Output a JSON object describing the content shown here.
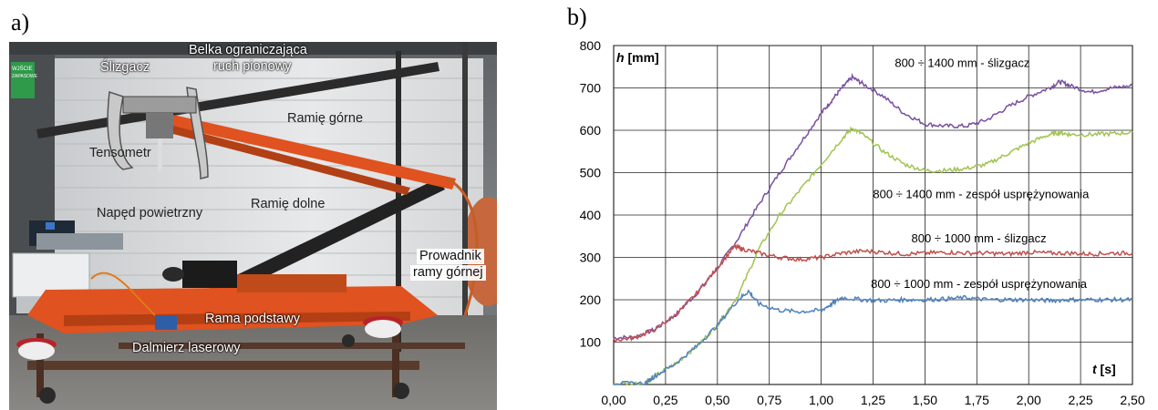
{
  "panel_a": {
    "letter": "a)",
    "labels": {
      "slizgacz": "Ślizgacz",
      "belka_1": "Belka ograniczająca",
      "belka_2": "ruch pionowy",
      "ramie_gorne": "Ramię górne",
      "tensometr": "Tensometr",
      "naped": "Napęd powietrzny",
      "ramie_dolne": "Ramię dolne",
      "prowadnik_1": "Prowadnik",
      "prowadnik_2": "ramy górnej",
      "rama_podstawy": "Rama podstawy",
      "dalmierz": "Dalmierz laserowy"
    },
    "sign_1": "WJŚCIE",
    "sign_2": "ZAPASOWE"
  },
  "panel_b": {
    "letter": "b)"
  },
  "chart_data": {
    "type": "line",
    "ylabel_main": "h",
    "ylabel_unit": " [mm]",
    "xlabel_main": "t",
    "xlabel_unit": " [s]",
    "xlim": [
      0,
      2.5
    ],
    "ylim": [
      0,
      800
    ],
    "x_ticks": [
      "0,00",
      "0,25",
      "0,50",
      "0,75",
      "1,00",
      "1,25",
      "1,50",
      "1,75",
      "2,00",
      "2,25",
      "2,50"
    ],
    "y_ticks": [
      "100",
      "200",
      "300",
      "400",
      "500",
      "600",
      "700",
      "800"
    ],
    "grid": true,
    "series": [
      {
        "name": "800 ÷ 1400 mm - ślizgacz",
        "color": "#7a4fa0",
        "x": [
          0,
          0.1,
          0.2,
          0.3,
          0.4,
          0.5,
          0.6,
          0.7,
          0.8,
          0.9,
          1.0,
          1.05,
          1.1,
          1.15,
          1.2,
          1.3,
          1.4,
          1.5,
          1.6,
          1.7,
          1.8,
          1.9,
          2.0,
          2.1,
          2.15,
          2.2,
          2.3,
          2.4,
          2.5
        ],
        "y": [
          110,
          112,
          130,
          165,
          215,
          275,
          345,
          425,
          500,
          570,
          640,
          670,
          700,
          725,
          710,
          680,
          640,
          615,
          610,
          610,
          625,
          655,
          680,
          700,
          715,
          705,
          690,
          700,
          705
        ]
      },
      {
        "name": "800 ÷ 1400 mm - zespół usprężynowania",
        "color": "#a0c450",
        "x": [
          0,
          0.15,
          0.2,
          0.3,
          0.4,
          0.5,
          0.6,
          0.7,
          0.8,
          0.9,
          1.0,
          1.1,
          1.15,
          1.2,
          1.3,
          1.4,
          1.5,
          1.6,
          1.7,
          1.8,
          1.9,
          2.0,
          2.1,
          2.15,
          2.2,
          2.3,
          2.4,
          2.5
        ],
        "y": [
          2,
          3,
          20,
          50,
          90,
          140,
          210,
          320,
          400,
          460,
          520,
          580,
          605,
          590,
          550,
          520,
          505,
          505,
          510,
          520,
          545,
          570,
          590,
          595,
          590,
          590,
          592,
          595
        ]
      },
      {
        "name": "800 ÷ 1000 mm - ślizgacz",
        "color": "#c0504d",
        "x": [
          0,
          0.1,
          0.2,
          0.3,
          0.4,
          0.5,
          0.58,
          0.62,
          0.7,
          0.8,
          0.9,
          1.0,
          1.1,
          1.2,
          1.3,
          1.4,
          1.5,
          1.6,
          1.7,
          1.8,
          1.9,
          2.0,
          2.1,
          2.2,
          2.3,
          2.4,
          2.5
        ],
        "y": [
          105,
          110,
          130,
          165,
          215,
          275,
          325,
          320,
          310,
          300,
          295,
          300,
          310,
          315,
          312,
          308,
          310,
          312,
          310,
          310,
          308,
          312,
          310,
          310,
          308,
          310,
          310
        ]
      },
      {
        "name": "800 ÷ 1000 mm - zespół usprężynowania",
        "color": "#4f81bd",
        "x": [
          0,
          0.15,
          0.2,
          0.3,
          0.4,
          0.5,
          0.6,
          0.65,
          0.7,
          0.8,
          0.9,
          1.0,
          1.05,
          1.1,
          1.2,
          1.3,
          1.4,
          1.5,
          1.6,
          1.7,
          1.8,
          1.9,
          2.0,
          2.1,
          2.2,
          2.3,
          2.4,
          2.5
        ],
        "y": [
          2,
          3,
          20,
          50,
          90,
          140,
          200,
          220,
          190,
          175,
          172,
          175,
          190,
          205,
          200,
          198,
          200,
          200,
          202,
          205,
          200,
          200,
          200,
          198,
          200,
          200,
          200,
          200
        ]
      }
    ],
    "annotations": [
      {
        "text": "800 ÷ 1400 mm - ślizgacz",
        "x": 1.68,
        "y": 750
      },
      {
        "text": "800 ÷ 1400 mm - zespół usprężynowania",
        "x": 1.77,
        "y": 440
      },
      {
        "text": "800 ÷ 1000 mm - ślizgacz",
        "x": 1.76,
        "y": 335
      },
      {
        "text": "800 ÷ 1000 mm - zespół usprężynowania",
        "x": 1.76,
        "y": 228
      }
    ]
  }
}
